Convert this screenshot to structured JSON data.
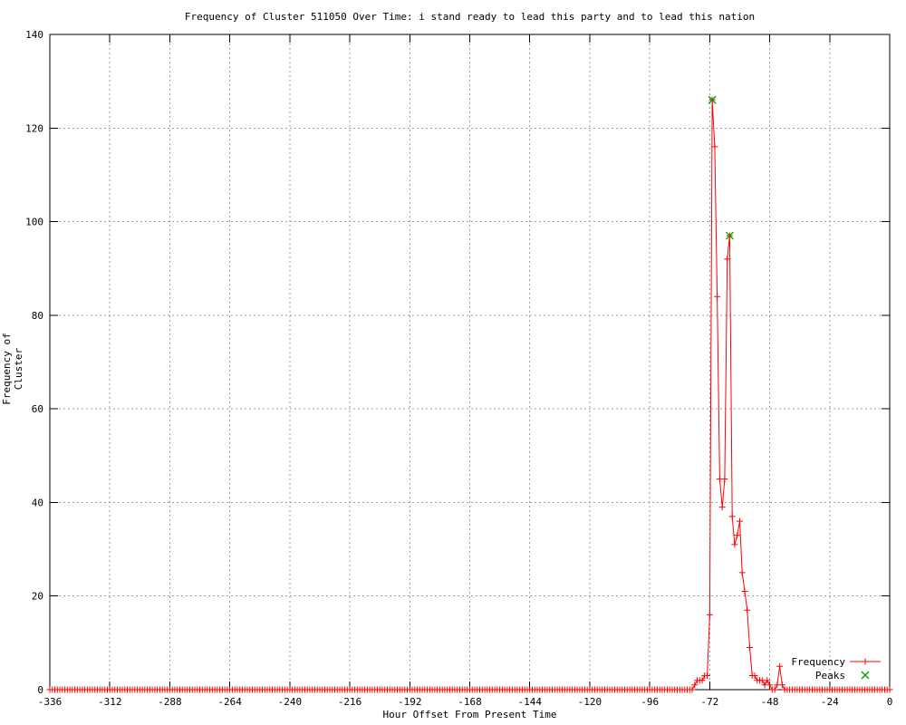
{
  "chart_data": {
    "type": "line",
    "title": "Frequency of Cluster 511050 Over Time: i stand ready to lead this party and to lead this nation",
    "xlabel": "Hour Offset From Present Time",
    "ylabel": "Frequency of Cluster",
    "xlim": [
      -336,
      0
    ],
    "ylim": [
      0,
      140
    ],
    "x_ticks": [
      -336,
      -312,
      -288,
      -264,
      -240,
      -216,
      -192,
      -168,
      -144,
      -120,
      -96,
      -72,
      -48,
      -24,
      0
    ],
    "y_ticks": [
      0,
      20,
      40,
      60,
      80,
      100,
      120,
      140
    ],
    "grid": true,
    "legend_position": "bottom-right",
    "colors": {
      "frequency": "#ff0000",
      "peaks": "#00a400",
      "grid": "#9e9e9e",
      "border": "#000000",
      "text": "#000000",
      "background": "#ffffff"
    },
    "series": [
      {
        "name": "Frequency",
        "style": "linespoints",
        "marker": "plus",
        "color": "#ff0000",
        "x_start": -336,
        "x_end": 0,
        "x_step": 1,
        "default_value": 0,
        "nonzero_values_by_hour": {
          "-78": 1,
          "-77": 2,
          "-76": 2,
          "-75": 2,
          "-74": 3,
          "-73": 3,
          "-72": 16,
          "-71": 126,
          "-70": 116,
          "-69": 84,
          "-68": 45,
          "-67": 39,
          "-66": 45,
          "-65": 92,
          "-64": 97,
          "-63": 37,
          "-62": 31,
          "-61": 33,
          "-60": 36,
          "-59": 25,
          "-58": 21,
          "-57": 17,
          "-56": 9,
          "-55": 3,
          "-54": 3,
          "-53": 2,
          "-52": 2,
          "-51": 2,
          "-50": 1,
          "-49": 2,
          "-48": 1,
          "-45": 1,
          "-44": 5,
          "-43": 1
        }
      },
      {
        "name": "Peaks",
        "style": "points",
        "marker": "x",
        "color": "#00a400",
        "points": [
          [
            -71,
            126
          ],
          [
            -64,
            97
          ]
        ]
      }
    ]
  }
}
